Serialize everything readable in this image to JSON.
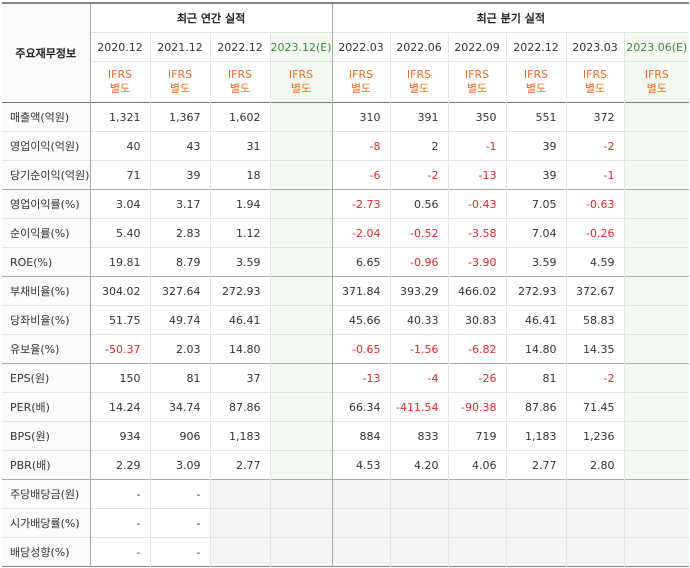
{
  "header": {
    "row_label": "주요재무정보",
    "annual_group": "최근 연간 실적",
    "quarter_group": "최근 분기 실적",
    "annual_periods": [
      "2020.12",
      "2021.12",
      "2022.12",
      "2023.12(E)"
    ],
    "quarter_periods": [
      "2022.03",
      "2022.06",
      "2022.09",
      "2022.12",
      "2023.03",
      "2023.06(E)"
    ],
    "ifrs_top": "IFRS",
    "ifrs_bottom": "별도"
  },
  "colors": {
    "negative": "#e32727",
    "ifrs": "#ef6b1f",
    "estimate": "#3c8c3c"
  },
  "rows": [
    {
      "label": "매출액(억원)",
      "annual": [
        "1,321",
        "1,367",
        "1,602",
        ""
      ],
      "quarter": [
        "310",
        "391",
        "350",
        "551",
        "372",
        ""
      ]
    },
    {
      "label": "영업이익(억원)",
      "annual": [
        "40",
        "43",
        "31",
        ""
      ],
      "quarter": [
        "-8",
        "2",
        "-1",
        "39",
        "-2",
        ""
      ]
    },
    {
      "label": "당기순이익(억원)",
      "annual": [
        "71",
        "39",
        "18",
        ""
      ],
      "quarter": [
        "-6",
        "-2",
        "-13",
        "39",
        "-1",
        ""
      ]
    },
    {
      "label": "영업이익률(%)",
      "annual": [
        "3.04",
        "3.17",
        "1.94",
        ""
      ],
      "quarter": [
        "-2.73",
        "0.56",
        "-0.43",
        "7.05",
        "-0.63",
        ""
      ]
    },
    {
      "label": "순이익률(%)",
      "annual": [
        "5.40",
        "2.83",
        "1.12",
        ""
      ],
      "quarter": [
        "-2.04",
        "-0.52",
        "-3.58",
        "7.04",
        "-0.26",
        ""
      ]
    },
    {
      "label": "ROE(%)",
      "annual": [
        "19.81",
        "8.79",
        "3.59",
        ""
      ],
      "quarter": [
        "6.65",
        "-0.96",
        "-3.90",
        "3.59",
        "4.59",
        ""
      ]
    },
    {
      "label": "부채비율(%)",
      "annual": [
        "304.02",
        "327.64",
        "272.93",
        ""
      ],
      "quarter": [
        "371.84",
        "393.29",
        "466.02",
        "272.93",
        "372.67",
        ""
      ]
    },
    {
      "label": "당좌비율(%)",
      "annual": [
        "51.75",
        "49.74",
        "46.41",
        ""
      ],
      "quarter": [
        "45.66",
        "40.33",
        "30.83",
        "46.41",
        "58.83",
        ""
      ]
    },
    {
      "label": "유보율(%)",
      "annual": [
        "-50.37",
        "2.03",
        "14.80",
        ""
      ],
      "quarter": [
        "-0.65",
        "-1.56",
        "-6.82",
        "14.80",
        "14.35",
        ""
      ]
    },
    {
      "label": "EPS(원)",
      "annual": [
        "150",
        "81",
        "37",
        ""
      ],
      "quarter": [
        "-13",
        "-4",
        "-26",
        "81",
        "-2",
        ""
      ]
    },
    {
      "label": "PER(배)",
      "annual": [
        "14.24",
        "34.74",
        "87.86",
        ""
      ],
      "quarter": [
        "66.34",
        "-411.54",
        "-90.38",
        "87.86",
        "71.45",
        ""
      ]
    },
    {
      "label": "BPS(원)",
      "annual": [
        "934",
        "906",
        "1,183",
        ""
      ],
      "quarter": [
        "884",
        "833",
        "719",
        "1,183",
        "1,236",
        ""
      ]
    },
    {
      "label": "PBR(배)",
      "annual": [
        "2.29",
        "3.09",
        "2.77",
        ""
      ],
      "quarter": [
        "4.53",
        "4.20",
        "4.06",
        "2.77",
        "2.80",
        ""
      ]
    },
    {
      "label": "주당배당금(원)",
      "annual": [
        "-",
        "-",
        "",
        ""
      ],
      "quarter": [
        "",
        "",
        "",
        "",
        "",
        ""
      ]
    },
    {
      "label": "시가배당률(%)",
      "annual": [
        "-",
        "-",
        "",
        ""
      ],
      "quarter": [
        "",
        "",
        "",
        "",
        "",
        ""
      ]
    },
    {
      "label": "배당성향(%)",
      "annual": [
        "-",
        "-",
        "",
        ""
      ],
      "quarter": [
        "",
        "",
        "",
        "",
        "",
        ""
      ]
    }
  ]
}
